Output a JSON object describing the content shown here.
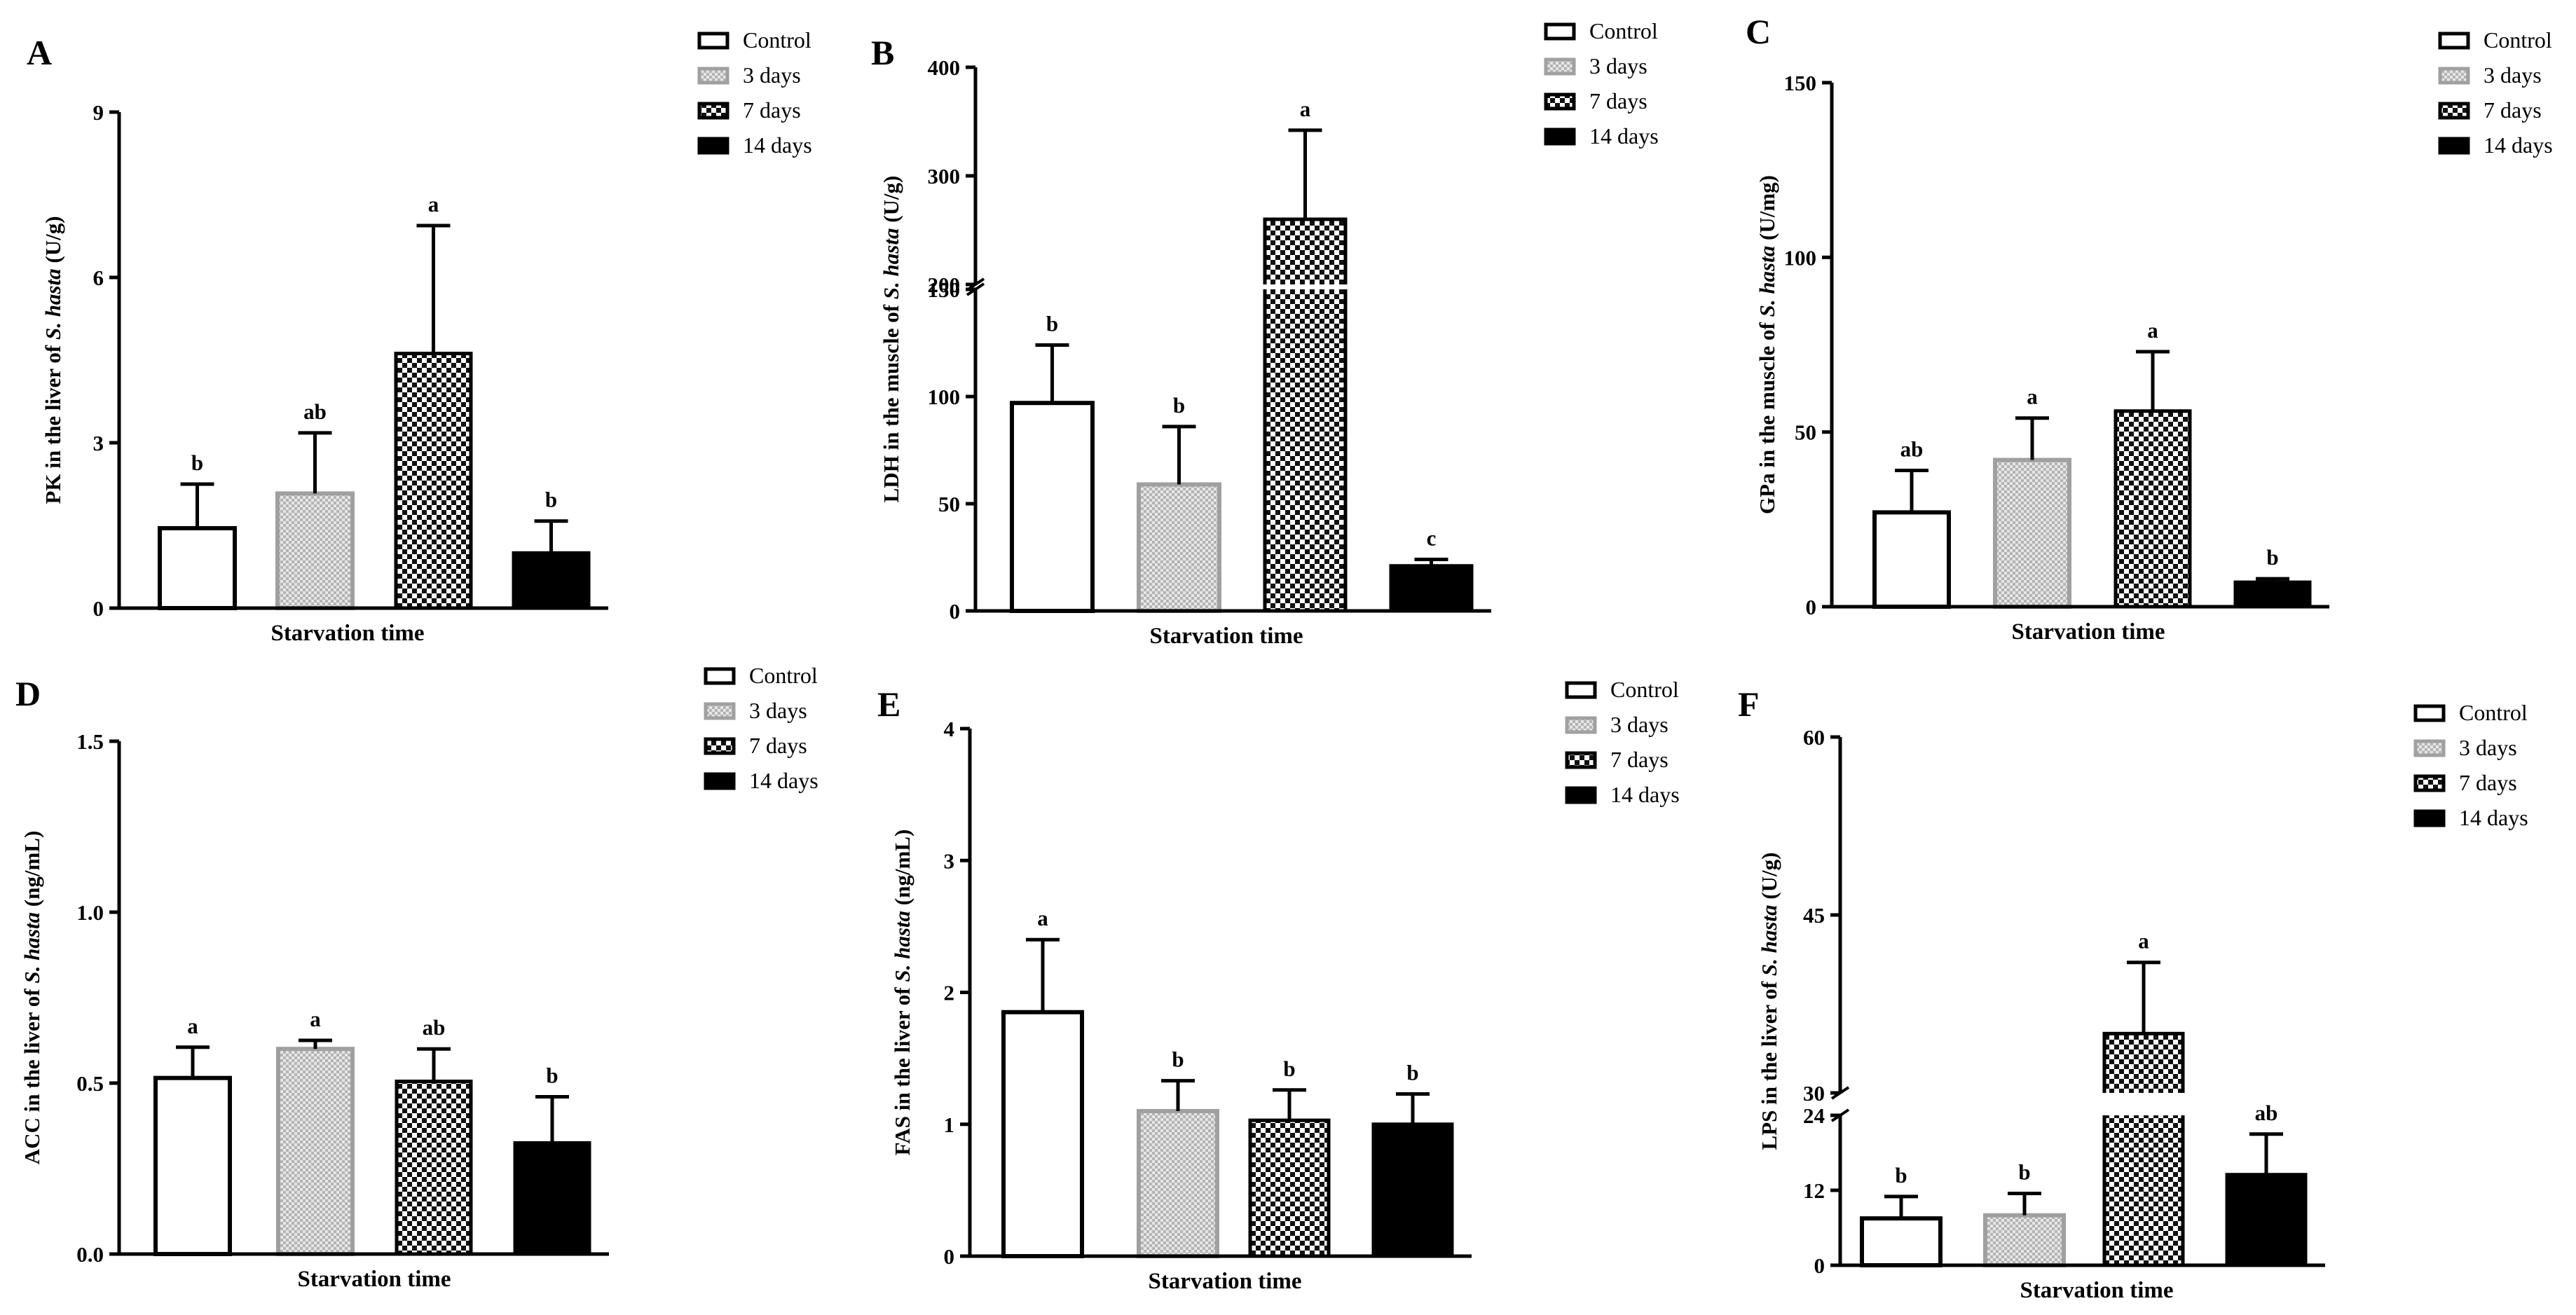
{
  "figure": {
    "series_labels": [
      "Control",
      "3 days",
      "7 days",
      "14 days"
    ],
    "colors": {
      "control": "#ffffff",
      "day3": "#c8c8c8",
      "day7": "#1a1a1a",
      "day14": "#000000",
      "stroke_light": "#a0a0a0"
    }
  },
  "chart_data": [
    {
      "type": "bar",
      "panel": "A",
      "title": "",
      "xlabel": "Starvation time",
      "ylabel": {
        "before": "PK in the liver of ",
        "italic": "S. hasta",
        "after": " (U/g)"
      },
      "categories": [
        "Control",
        "3 days",
        "7 days",
        "14 days"
      ],
      "values": [
        1.45,
        2.08,
        4.62,
        1.0
      ],
      "errors": [
        0.8,
        1.1,
        2.32,
        0.58
      ],
      "significance": [
        "b",
        "ab",
        "a",
        "b"
      ],
      "ylim": [
        0,
        9
      ],
      "yticks": [
        "0",
        "3",
        "6",
        "9"
      ],
      "legend": [
        "Control",
        "3 days",
        "7 days",
        "14 days"
      ]
    },
    {
      "type": "bar",
      "panel": "B",
      "title": "",
      "xlabel": "Starvation time",
      "ylabel": {
        "before": "LDH in the muscle of ",
        "italic": "S. hasta",
        "after": " (U/g)"
      },
      "categories": [
        "Control",
        "3 days",
        "7 days",
        "14 days"
      ],
      "values": [
        97,
        59,
        260,
        21
      ],
      "errors": [
        27,
        27,
        82,
        3
      ],
      "significance": [
        "b",
        "b",
        "a",
        "c"
      ],
      "axis_break": {
        "lower": [
          0,
          150
        ],
        "upper": [
          200,
          400
        ]
      },
      "yticks": [
        "0",
        "50",
        "100",
        "150",
        "200",
        "300",
        "400"
      ],
      "legend": [
        "Control",
        "3 days",
        "7 days",
        "14 days"
      ]
    },
    {
      "type": "bar",
      "panel": "C",
      "title": "",
      "xlabel": "Starvation time",
      "ylabel": {
        "before": "GPa in the muscle of ",
        "italic": "S. hasta",
        "after": " (U/mg)"
      },
      "categories": [
        "Control",
        "3 days",
        "7 days",
        "14 days"
      ],
      "values": [
        27,
        42,
        56,
        7
      ],
      "errors": [
        12,
        12,
        17,
        1
      ],
      "significance": [
        "ab",
        "a",
        "a",
        "b"
      ],
      "ylim": [
        0,
        150
      ],
      "yticks": [
        "0",
        "50",
        "100",
        "150"
      ],
      "legend": [
        "Control",
        "3 days",
        "7 days",
        "14 days"
      ]
    },
    {
      "type": "bar",
      "panel": "D",
      "title": "",
      "xlabel": "Starvation time",
      "ylabel": {
        "before": "ACC in the liver of ",
        "italic": "S. hasta",
        "after": " (ng/mL)"
      },
      "categories": [
        "Control",
        "3 days",
        "7 days",
        "14 days"
      ],
      "values": [
        0.515,
        0.6,
        0.505,
        0.325
      ],
      "errors": [
        0.09,
        0.025,
        0.095,
        0.135
      ],
      "significance": [
        "a",
        "a",
        "ab",
        "b"
      ],
      "ylim": [
        0,
        1.5
      ],
      "yticks": [
        "0.0",
        "0.5",
        "1.0",
        "1.5"
      ],
      "legend": [
        "Control",
        "3 days",
        "7 days",
        "14 days"
      ]
    },
    {
      "type": "bar",
      "panel": "E",
      "title": "",
      "xlabel": "Starvation time",
      "ylabel": {
        "before": "FAS in the liver of ",
        "italic": "S. hasta",
        "after": " (ng/mL)"
      },
      "categories": [
        "Control",
        "3 days",
        "7 days",
        "14 days"
      ],
      "values": [
        1.85,
        1.1,
        1.03,
        1.0
      ],
      "errors": [
        0.55,
        0.23,
        0.23,
        0.23
      ],
      "significance": [
        "a",
        "b",
        "b",
        "b"
      ],
      "ylim": [
        0,
        4
      ],
      "yticks": [
        "0",
        "1",
        "2",
        "3",
        "4"
      ],
      "legend": [
        "Control",
        "3 days",
        "7 days",
        "14 days"
      ]
    },
    {
      "type": "bar",
      "panel": "F",
      "title": "",
      "xlabel": "Starvation time",
      "ylabel": {
        "before": "LPS in the liver of ",
        "italic": "S. hasta",
        "after": " (U/g)"
      },
      "categories": [
        "Control",
        "3 days",
        "7 days",
        "14 days"
      ],
      "values": [
        7.5,
        8,
        35,
        14.5
      ],
      "errors": [
        3.5,
        3.5,
        6,
        6.5
      ],
      "significance": [
        "b",
        "b",
        "a",
        "ab"
      ],
      "axis_break": {
        "lower": [
          0,
          24
        ],
        "upper": [
          30,
          60
        ]
      },
      "yticks": [
        "0",
        "12",
        "24",
        "30",
        "45",
        "60"
      ],
      "legend": [
        "Control",
        "3 days",
        "7 days",
        "14 days"
      ]
    }
  ]
}
